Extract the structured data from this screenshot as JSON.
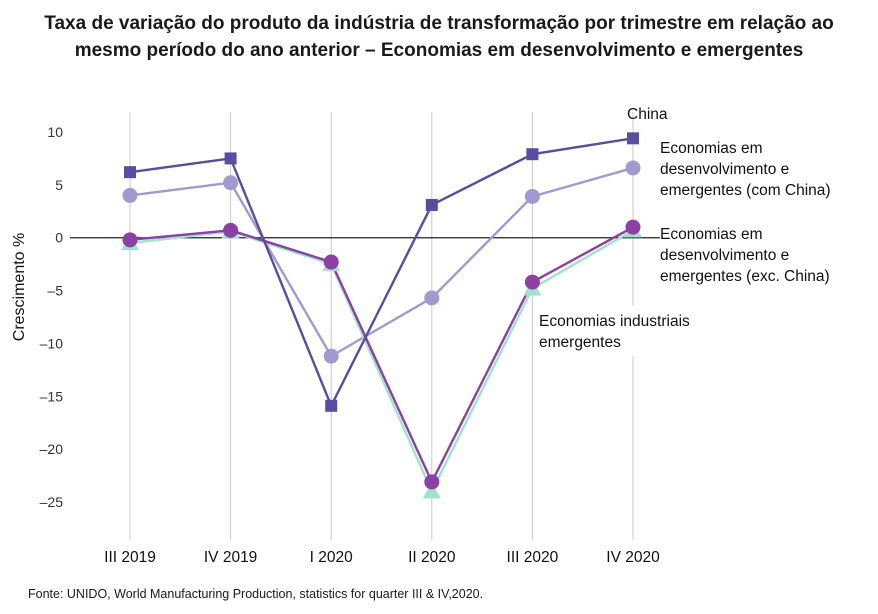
{
  "title": "Taxa de variação do produto da indústria de transformação por trimestre em relação ao mesmo período do ano anterior – Economias em desenvolvimento e emergentes",
  "source": "Fonte: UNIDO, World Manufacturing Production, statistics for quarter III & IV,2020.",
  "chart_data": {
    "type": "line",
    "title": "Taxa de variação do produto da indústria de transformação por trimestre em relação ao mesmo período do ano anterior – Economias em desenvolvimento e emergentes",
    "xlabel": "",
    "ylabel": "Crescimento %",
    "categories": [
      "III 2019",
      "IV 2019",
      "I 2020",
      "II 2020",
      "III 2020",
      "IV 2020"
    ],
    "ylim": [
      -25,
      10
    ],
    "yticks": [
      10,
      5,
      0,
      -5,
      -10,
      -15,
      -20,
      -25
    ],
    "ytick_labels": [
      "10",
      "5",
      "0",
      "–5",
      "–10",
      "–15",
      "–20",
      "–25"
    ],
    "grid": "vertical",
    "legend": "direct labels at right",
    "series": [
      {
        "name": "China",
        "label_lines": [
          "China"
        ],
        "values": [
          6.2,
          7.5,
          -15.9,
          3.1,
          7.9,
          9.4
        ],
        "color": "#5b4ba1",
        "marker": "square"
      },
      {
        "name": "Economias em desenvolvimento e emergentes (com China)",
        "label_lines": [
          "Economias em",
          "desenvolvimento e",
          "emergentes (com China)"
        ],
        "values": [
          4.0,
          5.2,
          -11.2,
          -5.7,
          3.9,
          6.6
        ],
        "color": "#a09ad0",
        "marker": "circle"
      },
      {
        "name": "Economias em desenvolvimento e emergentes (exc. China)",
        "label_lines": [
          "Economias em",
          "desenvolvimento e",
          "emergentes (exc. China)"
        ],
        "values": [
          -0.2,
          0.7,
          -2.3,
          -23.1,
          -4.2,
          1.0
        ],
        "color": "#8e3fa3",
        "marker": "circle"
      },
      {
        "name": "Economias industriais emergentes",
        "label_lines": [
          "Economias industriais",
          "emergentes"
        ],
        "values": [
          -0.5,
          0.6,
          -2.5,
          -24.0,
          -4.8,
          0.7
        ],
        "color": "#9fe3cd",
        "marker": "triangle"
      }
    ]
  }
}
